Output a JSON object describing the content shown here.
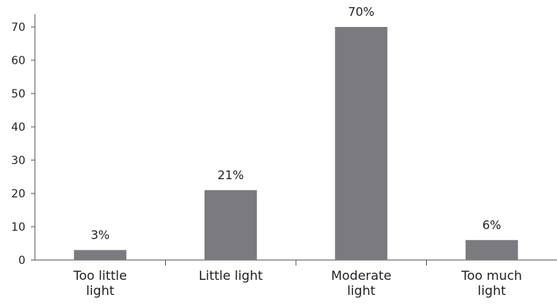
{
  "chart_data": {
    "type": "bar",
    "categories": [
      [
        "Too little",
        "light"
      ],
      [
        "Little light"
      ],
      [
        "Moderate",
        "light"
      ],
      [
        "Too much",
        "light"
      ]
    ],
    "values": [
      3,
      21,
      70,
      6
    ],
    "data_labels": [
      "3%",
      "21%",
      "70%",
      "6%"
    ],
    "y_ticks": [
      0,
      10,
      20,
      30,
      40,
      50,
      60,
      70
    ],
    "ylim": [
      0,
      70
    ],
    "grid": false,
    "legend": "none",
    "bar_color": "#7a7a7f",
    "axis_color": "#555555"
  }
}
